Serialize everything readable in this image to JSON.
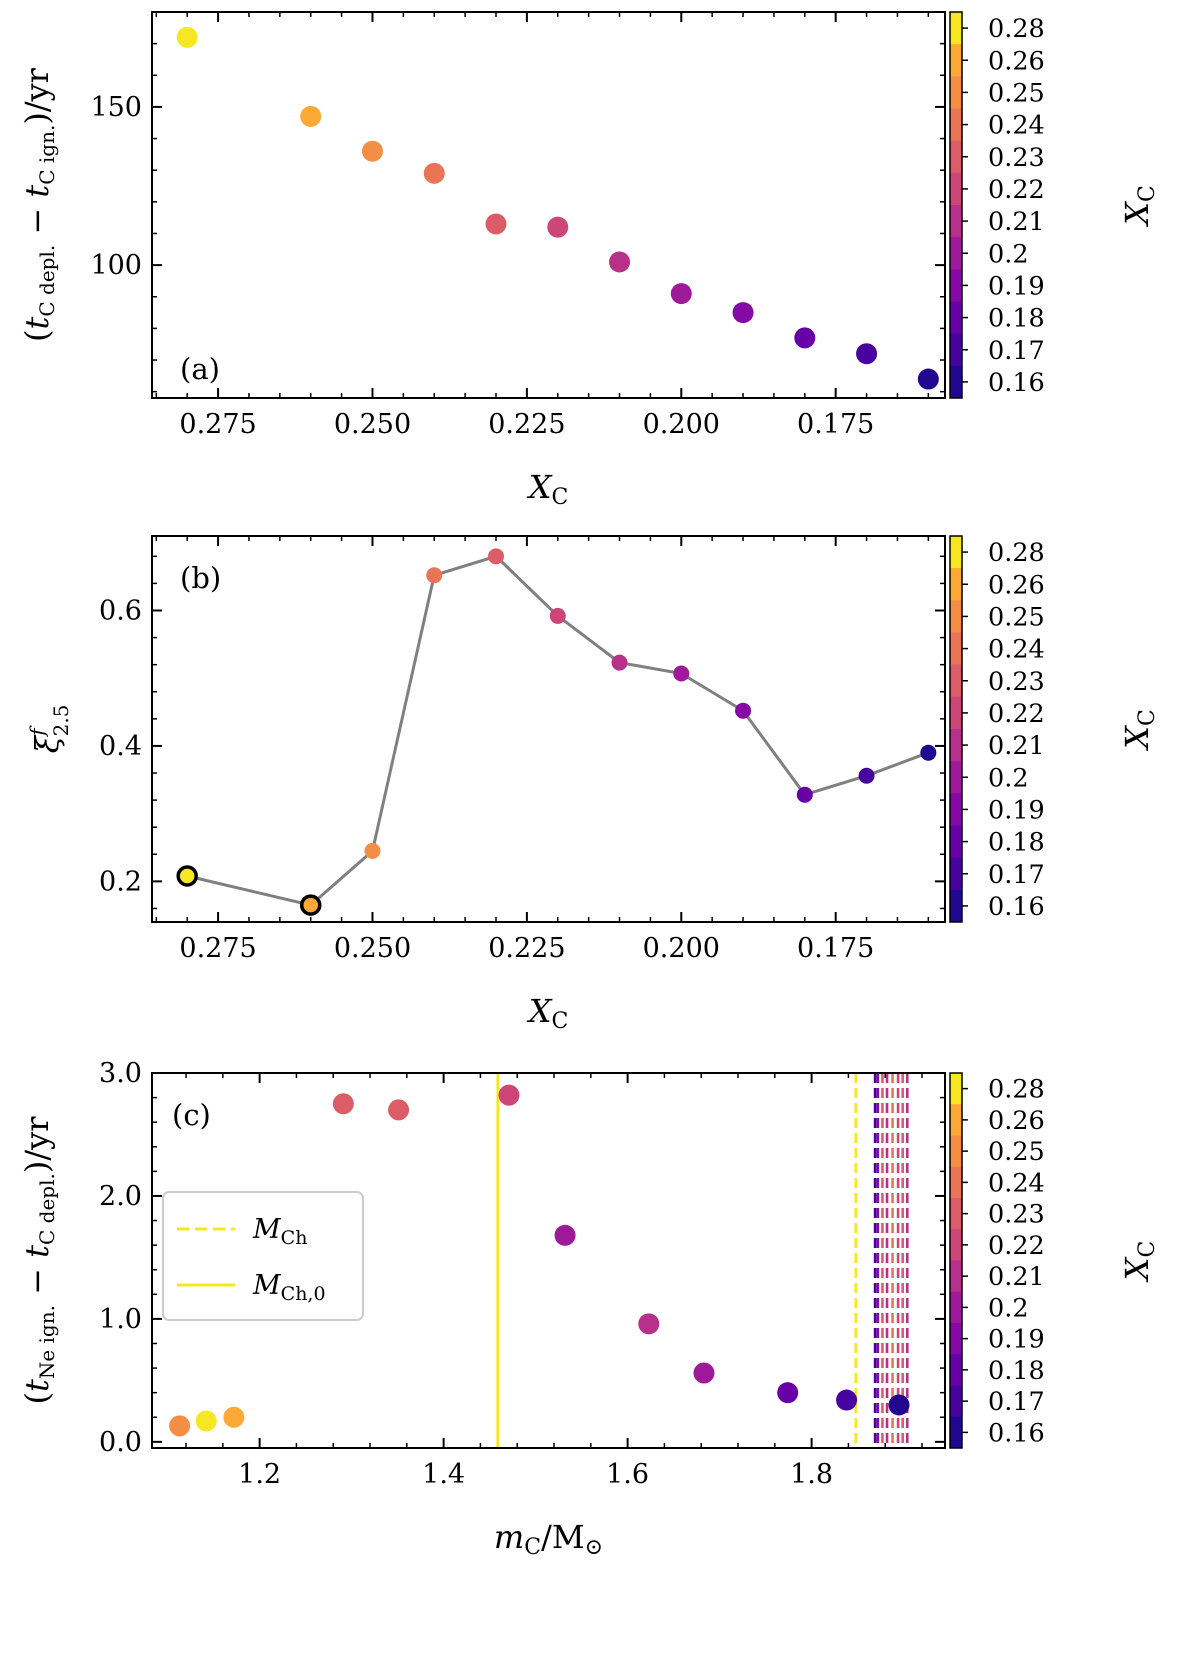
{
  "colormap": [
    "#0d0887",
    "#41049d",
    "#6a00a8",
    "#8f0da4",
    "#b12a90",
    "#cc4778",
    "#e16462",
    "#f2844b",
    "#fca636",
    "#fcce25",
    "#f0f921"
  ],
  "colorbar": {
    "label": "X",
    "label_sub": "C",
    "tick_labels": [
      "0.28",
      "0.26",
      "0.25",
      "0.24",
      "0.23",
      "0.22",
      "0.21",
      "0.2",
      "0.19",
      "0.18",
      "0.17",
      "0.16"
    ],
    "tick_values": [
      0.28,
      0.26,
      0.25,
      0.24,
      0.23,
      0.22,
      0.21,
      0.2,
      0.19,
      0.18,
      0.17,
      0.16
    ],
    "range": [
      0.155,
      0.285
    ]
  },
  "chart_data": [
    {
      "panel": "a",
      "type": "scatter",
      "tag": "(a)",
      "xlabel": "X",
      "xlabel_sub": "C",
      "ylabel": "(t_C depl. − t_C ign.)/yr",
      "ylabel_parts": {
        "open": "(",
        "t1": "t",
        "sub1": "C depl.",
        "minus": " − ",
        "t2": "t",
        "sub2": "C ign.",
        "close": ")/yr"
      },
      "x_inverted": true,
      "xlim": [
        0.2857,
        0.1573
      ],
      "ylim": [
        58,
        180
      ],
      "x_ticks": [
        0.275,
        0.25,
        0.225,
        0.2,
        0.175
      ],
      "x_tick_labels": [
        "0.275",
        "0.250",
        "0.225",
        "0.200",
        "0.175"
      ],
      "y_ticks": [
        100,
        150
      ],
      "y_tick_labels": [
        "100",
        "150"
      ],
      "x": [
        0.28,
        0.26,
        0.25,
        0.24,
        0.23,
        0.22,
        0.21,
        0.2,
        0.19,
        0.18,
        0.17,
        0.16
      ],
      "y": [
        172,
        147,
        136,
        129,
        113,
        112,
        101,
        91,
        85,
        77,
        72,
        64
      ],
      "color_values": [
        0.28,
        0.26,
        0.25,
        0.24,
        0.23,
        0.22,
        0.21,
        0.2,
        0.19,
        0.18,
        0.17,
        0.16
      ]
    },
    {
      "panel": "b",
      "type": "line",
      "tag": "(b)",
      "xlabel": "X",
      "xlabel_sub": "C",
      "ylabel": "ξ^f_2.5",
      "ylabel_parts": {
        "sym": "ξ",
        "sup": "f",
        "sub": "2.5"
      },
      "x_inverted": true,
      "xlim": [
        0.2857,
        0.1573
      ],
      "ylim": [
        0.14,
        0.71
      ],
      "x_ticks": [
        0.275,
        0.25,
        0.225,
        0.2,
        0.175
      ],
      "x_tick_labels": [
        "0.275",
        "0.250",
        "0.225",
        "0.200",
        "0.175"
      ],
      "y_ticks": [
        0.2,
        0.4,
        0.6
      ],
      "y_tick_labels": [
        "0.2",
        "0.4",
        "0.6"
      ],
      "x": [
        0.28,
        0.26,
        0.25,
        0.24,
        0.23,
        0.22,
        0.21,
        0.2,
        0.19,
        0.18,
        0.17,
        0.16
      ],
      "y": [
        0.208,
        0.165,
        0.245,
        0.652,
        0.68,
        0.592,
        0.523,
        0.507,
        0.452,
        0.328,
        0.356,
        0.39
      ],
      "color_values": [
        0.28,
        0.26,
        0.25,
        0.24,
        0.23,
        0.22,
        0.21,
        0.2,
        0.19,
        0.18,
        0.17,
        0.16
      ],
      "outlined_points": [
        0.28,
        0.26
      ],
      "line_color": "#808080"
    },
    {
      "panel": "c",
      "type": "scatter",
      "tag": "(c)",
      "xlabel": "m_C/M_⊙",
      "xlabel_parts": {
        "m": "m",
        "sub": "C",
        "rest": "/M",
        "sun": "⊙"
      },
      "ylabel": "(t_Ne ign. − t_C depl.)/yr",
      "ylabel_parts": {
        "open": "(",
        "t1": "t",
        "sub1": "Ne ign.",
        "minus": " − ",
        "t2": "t",
        "sub2": "C depl.",
        "close": ")/yr"
      },
      "xlim": [
        1.083,
        1.945
      ],
      "ylim": [
        -0.05,
        3.0
      ],
      "x_ticks": [
        1.2,
        1.4,
        1.6,
        1.8
      ],
      "x_tick_labels": [
        "1.2",
        "1.4",
        "1.6",
        "1.8"
      ],
      "y_ticks": [
        0.0,
        1.0,
        2.0,
        3.0
      ],
      "y_tick_labels": [
        "0.0",
        "1.0",
        "2.0",
        "3.0"
      ],
      "x": [
        1.113,
        1.142,
        1.172,
        1.291,
        1.351,
        1.471,
        1.532,
        1.623,
        1.683,
        1.774,
        1.838,
        1.895
      ],
      "y": [
        0.13,
        0.17,
        0.2,
        2.75,
        2.7,
        2.82,
        1.68,
        0.96,
        0.56,
        0.4,
        0.34,
        0.3
      ],
      "color_values": [
        0.25,
        0.28,
        0.26,
        0.23,
        0.23,
        0.22,
        0.2,
        0.21,
        0.2,
        0.18,
        0.17,
        0.16
      ],
      "vlines_dashed": [
        {
          "x": 1.848,
          "color_value": 0.28
        },
        {
          "x": 1.869,
          "color_value": 0.17
        },
        {
          "x": 1.872,
          "color_value": 0.19
        },
        {
          "x": 1.877,
          "color_value": 0.23
        },
        {
          "x": 1.882,
          "color_value": 0.21
        },
        {
          "x": 1.888,
          "color_value": 0.24
        },
        {
          "x": 1.894,
          "color_value": 0.22
        },
        {
          "x": 1.899,
          "color_value": 0.23
        },
        {
          "x": 1.904,
          "color_value": 0.21
        }
      ],
      "vline_solid": {
        "x": 1.459,
        "color_value": 0.28
      },
      "legend": [
        {
          "style": "dashed",
          "label": "M",
          "label_sub": "Ch"
        },
        {
          "style": "solid",
          "label": "M",
          "label_sub": "Ch,0"
        }
      ]
    }
  ]
}
